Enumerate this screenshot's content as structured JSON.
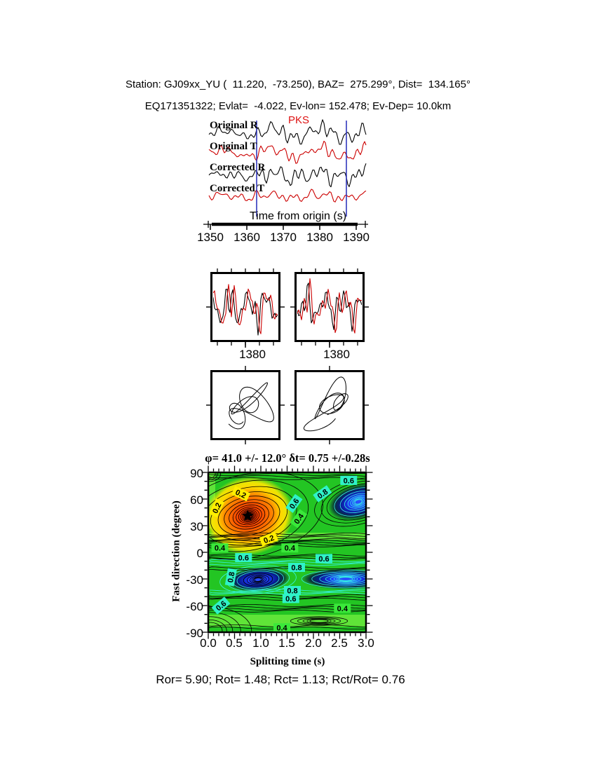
{
  "header": {
    "line1": "Station: GJ09xx_YU (  11.220,  -73.250), BAZ=  275.299°, Dist=  134.165°",
    "line2": "EQ171351322; Evlat=  -4.022, Ev-lon= 152.478; Ev-Dep= 10.0km"
  },
  "waveform_panel": {
    "phase_label": "PKS",
    "traces": [
      {
        "label": "Original R",
        "color": "#000000"
      },
      {
        "label": "Original T",
        "color": "#cc0000"
      },
      {
        "label": "Corrected R",
        "color": "#000000"
      },
      {
        "label": "Corrected T",
        "color": "#cc0000"
      }
    ],
    "axis": {
      "title": "Time from origin (s)",
      "ticks": [
        "1350",
        "1360",
        "1370",
        "1380",
        "1390"
      ]
    }
  },
  "pair_panels": [
    {
      "tick_label": "1380"
    },
    {
      "tick_label": "1380"
    }
  ],
  "contour_panel": {
    "title": "φ= 41.0 +/- 12.0° δt= 0.75 +/-0.28s",
    "ylabel": "Fast direction (degree)",
    "xlabel": "Splitting time (s)",
    "yticks": [
      "90",
      "60",
      "30",
      "0",
      "-30",
      "-60",
      "-90"
    ],
    "xticks": [
      "0.0",
      "0.5",
      "1.0",
      "1.5",
      "2.0",
      "2.5",
      "3.0"
    ]
  },
  "footer": {
    "text": "Ror= 5.90; Rot= 1.48; Rct= 1.13; Rct/Rot= 0.76"
  },
  "colors": {
    "trace_red": "#cc0000",
    "window_line_blue": "#3137bd",
    "phase_red": "#dd1111",
    "bg_green": "#23c523",
    "light_green": "#6ae93c",
    "red_core": "#ff2000",
    "orange": "#ff8c00",
    "yellow": "#ffe800",
    "blue_core": "#1e3cff",
    "blue_dark": "#071b8f",
    "cyan_line": "#35f2e2",
    "chip_yellow": "#ffee00",
    "chip_green": "#3ae83a",
    "chip_cyan": "#2ff2c8"
  },
  "chart_data": [
    {
      "id": "waveforms",
      "type": "line",
      "xlabel": "Time from origin (s)",
      "xlim": [
        1345,
        1395
      ],
      "xticks": [
        1350,
        1360,
        1370,
        1380,
        1390
      ],
      "series": [
        {
          "name": "Original R",
          "color": "#000000"
        },
        {
          "name": "Original T",
          "color": "#cc0000"
        },
        {
          "name": "Corrected R",
          "color": "#000000"
        },
        {
          "name": "Corrected T",
          "color": "#cc0000"
        }
      ],
      "phase_pick": "PKS",
      "window_markers_s": [
        1363,
        1388
      ]
    },
    {
      "id": "pair_overlays",
      "type": "line",
      "panels": [
        {
          "x_tick": 1380,
          "series": [
            "fast (black)",
            "slow (red)"
          ]
        },
        {
          "x_tick": 1380,
          "series": [
            "fast (black)",
            "slow (red)"
          ]
        }
      ]
    },
    {
      "id": "particle_motion",
      "type": "scatter",
      "panels": [
        "original (elliptical)",
        "corrected (linear diagonal)"
      ]
    },
    {
      "id": "misfit_map",
      "type": "heatmap",
      "xlabel": "Splitting time (s)",
      "ylabel": "Fast direction (degree)",
      "xlim": [
        0.0,
        3.0
      ],
      "ylim": [
        -90,
        90
      ],
      "xticks": [
        0.0,
        0.5,
        1.0,
        1.5,
        2.0,
        2.5,
        3.0
      ],
      "yticks": [
        90,
        60,
        30,
        0,
        -30,
        -60,
        -90
      ],
      "best_fit": {
        "fast_direction_deg": 41.0,
        "fast_direction_err_deg": 12.0,
        "delay_time_s": 0.75,
        "delay_time_err_s": 0.28
      },
      "star_marker": {
        "x": 0.75,
        "y": 41
      },
      "contour_levels": [
        0.2,
        0.4,
        0.6,
        0.8
      ],
      "minima": [
        {
          "x": 0.77,
          "y": 41,
          "kind": "best (red)"
        }
      ],
      "maxima": [
        {
          "x": 2.85,
          "y": 57,
          "kind": "high misfit (blue)"
        },
        {
          "x": 0.95,
          "y": -31,
          "kind": "high misfit (blue)"
        },
        {
          "x": 2.55,
          "y": -30,
          "kind": "high misfit (blue)"
        }
      ],
      "contour_labels": [
        {
          "t": "0.2",
          "x": 0.62,
          "y": 66,
          "r": 25,
          "bg": "yellow"
        },
        {
          "t": "0.2",
          "x": 0.16,
          "y": 50,
          "r": -65,
          "bg": "yellow"
        },
        {
          "t": "0.2",
          "x": 1.15,
          "y": 15,
          "r": -20,
          "bg": "yellow"
        },
        {
          "t": "0.6",
          "x": 2.67,
          "y": 81,
          "r": 0,
          "bg": "cyan"
        },
        {
          "t": "0.8",
          "x": 2.17,
          "y": 66,
          "r": -35,
          "bg": "cyan"
        },
        {
          "t": "0.6",
          "x": 1.63,
          "y": 55,
          "r": -55,
          "bg": "cyan"
        },
        {
          "t": "0.4",
          "x": 1.72,
          "y": 38,
          "r": -55,
          "bg": "green"
        },
        {
          "t": "0.4",
          "x": 0.22,
          "y": 5,
          "r": 0,
          "bg": "green"
        },
        {
          "t": "0.4",
          "x": 1.55,
          "y": 5,
          "r": 0,
          "bg": "green"
        },
        {
          "t": "0.6",
          "x": 0.67,
          "y": -6,
          "r": 0,
          "bg": "cyan"
        },
        {
          "t": "0.6",
          "x": 2.2,
          "y": -7,
          "r": 0,
          "bg": "cyan"
        },
        {
          "t": "0.8",
          "x": 1.68,
          "y": -17,
          "r": 0,
          "bg": "cyan"
        },
        {
          "t": "0.8",
          "x": 0.43,
          "y": -28,
          "r": -80,
          "bg": "cyan"
        },
        {
          "t": "0.8",
          "x": 1.6,
          "y": -43,
          "r": 0,
          "bg": "cyan"
        },
        {
          "t": "0.6",
          "x": 1.57,
          "y": -52,
          "r": 0,
          "bg": "cyan"
        },
        {
          "t": "0.6",
          "x": 0.24,
          "y": -60,
          "r": -40,
          "bg": "cyan"
        },
        {
          "t": "0.4",
          "x": 2.55,
          "y": -63,
          "r": 0,
          "bg": "green"
        },
        {
          "t": "0.4",
          "x": 1.4,
          "y": -85,
          "r": 0,
          "bg": "green"
        }
      ]
    }
  ]
}
